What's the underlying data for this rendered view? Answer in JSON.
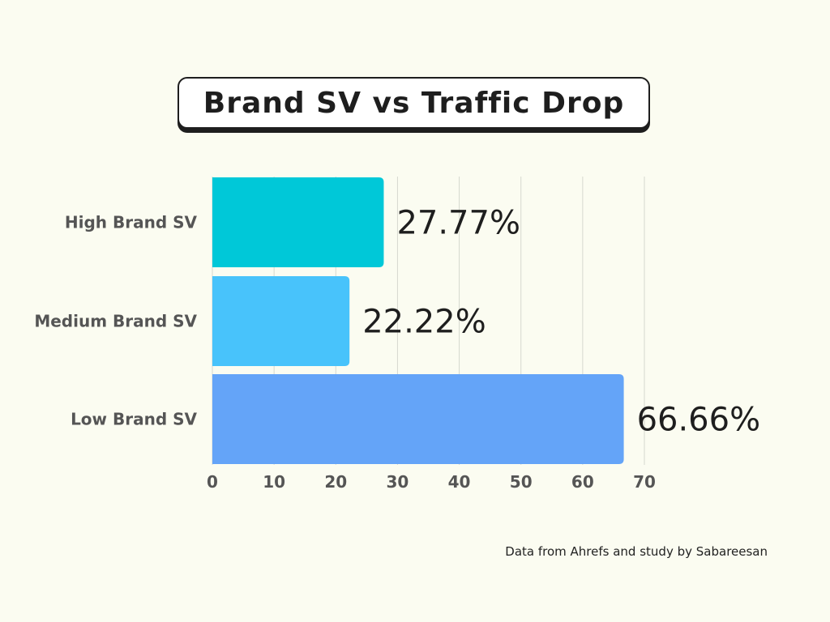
{
  "title": "Brand SV vs Traffic Drop",
  "source_note": "Data from Ahrefs and study by Sabareesan",
  "colors": {
    "background": "#fbfcf1",
    "grid": "#d6d8cf",
    "axis_text": "#555555",
    "value_text": "#1e1e1e"
  },
  "chart_data": {
    "type": "bar",
    "orientation": "horizontal",
    "title": "Brand SV vs Traffic Drop",
    "categories": [
      "High Brand SV",
      "Medium Brand SV",
      "Low Brand SV"
    ],
    "values": [
      27.77,
      22.22,
      66.66
    ],
    "value_labels": [
      "27.77%",
      "22.22%",
      "66.66%"
    ],
    "bar_colors": [
      "#00c8d8",
      "#48c3fb",
      "#64a4f8"
    ],
    "xlabel": "",
    "ylabel": "",
    "xlim": [
      0,
      70
    ],
    "xticks": [
      "0",
      "10",
      "20",
      "30",
      "40",
      "50",
      "60",
      "70"
    ],
    "grid": "vertical"
  }
}
